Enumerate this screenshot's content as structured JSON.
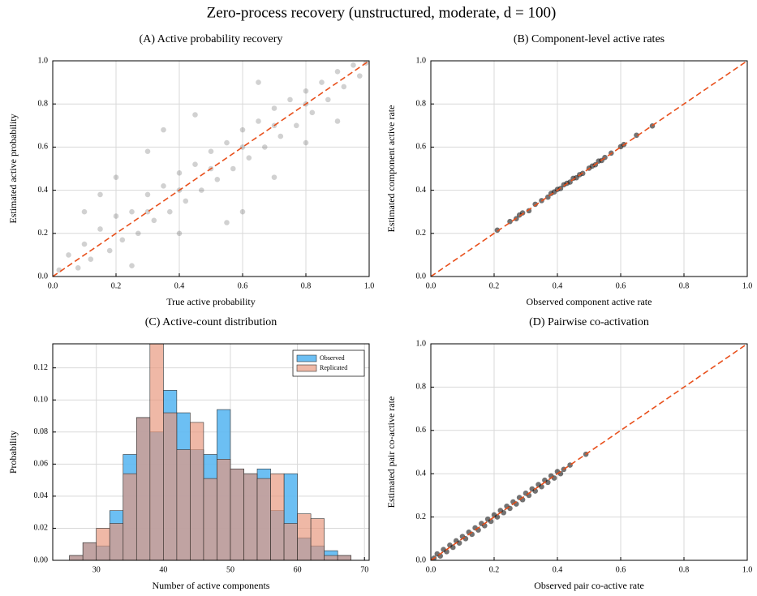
{
  "title": "Zero-process recovery (unstructured, moderate, d = 100)",
  "chart_data": [
    {
      "type": "scatter",
      "title": "(A) Active probability recovery",
      "xlabel": "True active probability",
      "ylabel": "Estimated active probability",
      "xlim": [
        0,
        1
      ],
      "ylim": [
        0,
        1
      ],
      "xticks": [
        {
          "value": 0,
          "label": "0.0"
        },
        0.2,
        0.4,
        0.6,
        0.8,
        {
          "value": 1,
          "label": "1.0"
        }
      ],
      "yticks": [
        {
          "value": 0,
          "label": "0.0"
        },
        0.2,
        0.4,
        0.6,
        0.8,
        {
          "value": 1,
          "label": "1.0"
        }
      ],
      "grid": true,
      "series": [
        {
          "color": "#000000",
          "x": [
            0.02,
            0.05,
            0.08,
            0.1,
            0.12,
            0.15,
            0.18,
            0.2,
            0.22,
            0.25,
            0.27,
            0.3,
            0.32,
            0.35,
            0.37,
            0.4,
            0.42,
            0.45,
            0.47,
            0.5,
            0.52,
            0.55,
            0.57,
            0.6,
            0.62,
            0.65,
            0.67,
            0.7,
            0.72,
            0.75,
            0.77,
            0.8,
            0.82,
            0.85,
            0.87,
            0.9,
            0.92,
            0.95,
            0.97,
            0.99,
            0.2,
            0.3,
            0.15,
            0.6,
            0.7,
            0.8,
            0.45,
            0.35,
            0.55,
            0.1,
            0.25,
            0.4,
            0.65,
            0.9,
            0.5,
            0.3,
            0.7,
            0.6,
            0.4,
            0.8
          ],
          "y": [
            0.03,
            0.1,
            0.04,
            0.15,
            0.08,
            0.22,
            0.12,
            0.28,
            0.17,
            0.3,
            0.2,
            0.38,
            0.26,
            0.42,
            0.3,
            0.48,
            0.35,
            0.52,
            0.4,
            0.58,
            0.45,
            0.62,
            0.5,
            0.68,
            0.55,
            0.72,
            0.6,
            0.78,
            0.65,
            0.82,
            0.7,
            0.86,
            0.76,
            0.9,
            0.82,
            0.95,
            0.88,
            0.98,
            0.93,
            0.99,
            0.46,
            0.58,
            0.38,
            0.3,
            0.46,
            0.62,
            0.75,
            0.68,
            0.25,
            0.3,
            0.05,
            0.2,
            0.9,
            0.72,
            0.5,
            0.3,
            0.7,
            0.6,
            0.4,
            0.8
          ]
        }
      ]
    },
    {
      "type": "scatter",
      "title": "(B) Component-level active rates",
      "xlabel": "Observed component active rate",
      "ylabel": "Estimated component active rate",
      "xlim": [
        0,
        1
      ],
      "ylim": [
        0,
        1
      ],
      "xticks": [
        {
          "value": 0,
          "label": "0.0"
        },
        0.2,
        0.4,
        0.6,
        0.8,
        {
          "value": 1,
          "label": "1.0"
        }
      ],
      "yticks": [
        {
          "value": 0,
          "label": "0.0"
        },
        0.2,
        0.4,
        0.6,
        0.8,
        {
          "value": 1,
          "label": "1.0"
        }
      ],
      "grid": true,
      "series": [
        {
          "color": "#000000",
          "x": [
            0.21,
            0.25,
            0.27,
            0.28,
            0.29,
            0.31,
            0.33,
            0.35,
            0.37,
            0.38,
            0.39,
            0.4,
            0.41,
            0.42,
            0.43,
            0.44,
            0.45,
            0.46,
            0.47,
            0.48,
            0.5,
            0.51,
            0.52,
            0.53,
            0.54,
            0.55,
            0.57,
            0.6,
            0.61,
            0.65,
            0.7
          ],
          "y": [
            0.215,
            0.255,
            0.268,
            0.285,
            0.295,
            0.305,
            0.335,
            0.352,
            0.368,
            0.385,
            0.392,
            0.404,
            0.408,
            0.425,
            0.432,
            0.438,
            0.455,
            0.458,
            0.472,
            0.478,
            0.502,
            0.512,
            0.518,
            0.535,
            0.538,
            0.552,
            0.572,
            0.602,
            0.612,
            0.655,
            0.698
          ]
        }
      ]
    },
    {
      "type": "histogram",
      "title": "(C) Active-count distribution",
      "xlabel": "Number of active components",
      "ylabel": "Probability",
      "xlim": [
        23.5,
        70.7
      ],
      "ylim": [
        0,
        0.135
      ],
      "xticks": [
        30,
        40,
        50,
        60,
        70
      ],
      "yticks": [
        {
          "value": 0,
          "label": "0.00"
        },
        {
          "value": 0.02,
          "label": "0.02"
        },
        {
          "value": 0.04,
          "label": "0.04"
        },
        {
          "value": 0.06,
          "label": "0.06"
        },
        {
          "value": 0.08,
          "label": "0.08"
        },
        {
          "value": 0.1,
          "label": "0.10"
        },
        {
          "value": 0.12,
          "label": "0.12"
        }
      ],
      "grid": true,
      "legend": "upper right",
      "bins": [
        26,
        28,
        30,
        32,
        34,
        36,
        38,
        40,
        42,
        44,
        46,
        48,
        50,
        52,
        54,
        56,
        58,
        60,
        62,
        64,
        66,
        68
      ],
      "series": [
        {
          "name": "Observed",
          "color": "#5cb8f2",
          "values": [
            0.003,
            0.011,
            0.009,
            0.031,
            0.066,
            0.089,
            0.08,
            0.106,
            0.092,
            0.069,
            0.066,
            0.094,
            0.057,
            0.054,
            0.057,
            0.031,
            0.054,
            0.014,
            0.009,
            0.006,
            0.003
          ]
        },
        {
          "name": "Replicated",
          "color": "#e8977c",
          "values": [
            0.003,
            0.011,
            0.02,
            0.023,
            0.054,
            0.089,
            0.135,
            0.092,
            0.069,
            0.086,
            0.051,
            0.063,
            0.057,
            0.054,
            0.051,
            0.054,
            0.023,
            0.029,
            0.026,
            0.003,
            0.003
          ]
        }
      ]
    },
    {
      "type": "scatter",
      "title": "(D) Pairwise co-activation",
      "xlabel": "Observed pair co-active rate",
      "ylabel": "Estimated pair co-active rate",
      "xlim": [
        0,
        1
      ],
      "ylim": [
        0,
        1
      ],
      "xticks": [
        {
          "value": 0,
          "label": "0.0"
        },
        0.2,
        0.4,
        0.6,
        0.8,
        {
          "value": 1,
          "label": "1.0"
        }
      ],
      "yticks": [
        {
          "value": 0,
          "label": "0.0"
        },
        0.2,
        0.4,
        0.6,
        0.8,
        {
          "value": 1,
          "label": "1.0"
        }
      ],
      "grid": true,
      "series": [
        {
          "color": "#000000",
          "x": [
            0.01,
            0.02,
            0.03,
            0.04,
            0.05,
            0.06,
            0.07,
            0.08,
            0.09,
            0.1,
            0.11,
            0.12,
            0.13,
            0.14,
            0.15,
            0.16,
            0.17,
            0.18,
            0.19,
            0.2,
            0.21,
            0.22,
            0.23,
            0.24,
            0.25,
            0.26,
            0.27,
            0.28,
            0.29,
            0.3,
            0.31,
            0.32,
            0.33,
            0.34,
            0.35,
            0.36,
            0.37,
            0.38,
            0.39,
            0.4,
            0.41,
            0.42,
            0.44,
            0.49
          ],
          "y": [
            0.01,
            0.03,
            0.02,
            0.05,
            0.04,
            0.07,
            0.06,
            0.09,
            0.08,
            0.11,
            0.1,
            0.13,
            0.12,
            0.15,
            0.14,
            0.17,
            0.16,
            0.19,
            0.18,
            0.21,
            0.2,
            0.23,
            0.22,
            0.25,
            0.24,
            0.27,
            0.26,
            0.29,
            0.28,
            0.31,
            0.3,
            0.33,
            0.32,
            0.35,
            0.34,
            0.37,
            0.36,
            0.39,
            0.38,
            0.41,
            0.4,
            0.42,
            0.44,
            0.49
          ]
        }
      ]
    }
  ]
}
